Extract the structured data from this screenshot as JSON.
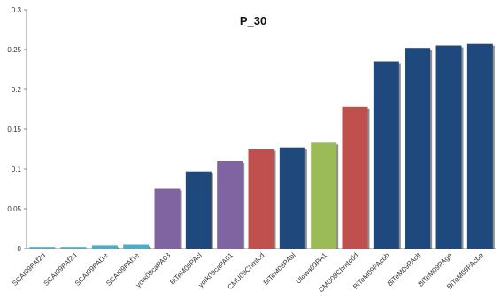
{
  "chart_data": {
    "type": "bar",
    "title": "P_30",
    "xlabel": "",
    "ylabel": "",
    "ylim": [
      0,
      0.3
    ],
    "yticks": [
      "0",
      "0.05",
      "0.1",
      "0.15",
      "0.2",
      "0.25",
      "0.3"
    ],
    "grid": false,
    "legend": "none",
    "categories": [
      "SCAI09PAf2d",
      "SCAI09PAf2d",
      "SCAI09PAt1e",
      "SCAI09PAf1e",
      "york09caPA03",
      "BiTeM09PAcl",
      "york09caPA01",
      "CMU09Chmtcd",
      "BiTeM09PAbl",
      "Ulowa09PA1",
      "CMU09Chmtcdd",
      "BiTeM09PAcbb",
      "BiTeM09PAclt",
      "BiTeM09PAge",
      "BiTeM09PAcba"
    ],
    "values": [
      0.002,
      0.002,
      0.004,
      0.005,
      0.075,
      0.097,
      0.11,
      0.125,
      0.127,
      0.133,
      0.178,
      0.235,
      0.252,
      0.255,
      0.257
    ],
    "colors": [
      "#4bacc6",
      "#4bacc6",
      "#4bacc6",
      "#4bacc6",
      "#8064a2",
      "#1f497d",
      "#8064a2",
      "#c0504d",
      "#1f497d",
      "#9bbb59",
      "#c0504d",
      "#1f497d",
      "#1f497d",
      "#1f497d",
      "#1f497d"
    ]
  }
}
